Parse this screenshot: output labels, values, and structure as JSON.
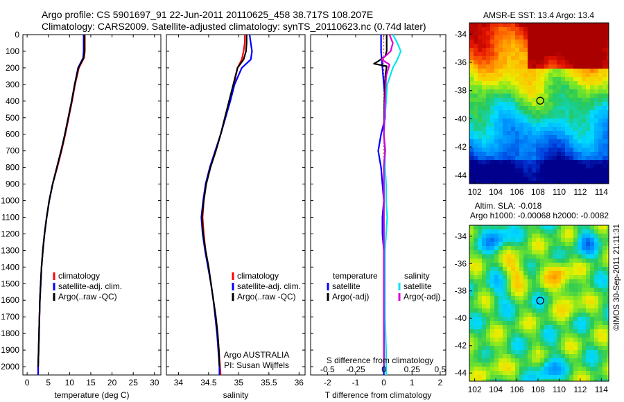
{
  "header": {
    "line1": "Argo profile: CS 5901697_91 22-Jun-2011 20110625_458 38.717S 108.207E",
    "line2": "Climatology: CARS2009. Satellite-adjusted climatology: synTS_20110623.nc (0.74d later)"
  },
  "side_label": "©IMOS 30-Sep-2011 21:11:31",
  "colors": {
    "climatology": "#ff0000",
    "satellite": "#0000ff",
    "argo": "#000000",
    "sal_satellite": "#00e5ee",
    "sal_argo": "#dd00dd",
    "zero_line": "#ff0000"
  },
  "depth_axis": {
    "ylim": [
      0,
      2050
    ],
    "ticks": [
      0,
      100,
      200,
      300,
      400,
      500,
      600,
      700,
      800,
      900,
      1000,
      1100,
      1200,
      1300,
      1400,
      1500,
      1600,
      1700,
      1800,
      1900,
      2000
    ]
  },
  "chart_data": [
    {
      "id": "temperature",
      "type": "line",
      "xlabel": "temperature (deg C)",
      "ylabel": "",
      "xlim": [
        -1,
        31.5
      ],
      "xticks": [
        0,
        5,
        10,
        15,
        20,
        25,
        30
      ],
      "ylim": [
        2050,
        0
      ],
      "series": [
        {
          "name": "climatology",
          "color_key": "climatology",
          "points": [
            [
              13.6,
              0
            ],
            [
              13.6,
              100
            ],
            [
              13.4,
              140
            ],
            [
              12.2,
              200
            ],
            [
              11.3,
              300
            ],
            [
              10.6,
              400
            ],
            [
              9.8,
              500
            ],
            [
              9.0,
              600
            ],
            [
              8.1,
              700
            ],
            [
              7.1,
              800
            ],
            [
              6.0,
              900
            ],
            [
              5.2,
              1000
            ],
            [
              4.6,
              1100
            ],
            [
              4.1,
              1200
            ],
            [
              3.7,
              1300
            ],
            [
              3.4,
              1400
            ],
            [
              3.2,
              1500
            ],
            [
              3.0,
              1600
            ],
            [
              2.9,
              1700
            ],
            [
              2.8,
              1800
            ],
            [
              2.7,
              1900
            ],
            [
              2.6,
              2000
            ],
            [
              2.6,
              2050
            ]
          ]
        },
        {
          "name": "satellite-adj. clim.",
          "color_key": "satellite",
          "points": [
            [
              13.3,
              0
            ],
            [
              13.3,
              100
            ],
            [
              13.2,
              140
            ],
            [
              12.0,
              200
            ],
            [
              11.2,
              300
            ],
            [
              10.5,
              400
            ],
            [
              9.7,
              500
            ],
            [
              8.9,
              600
            ],
            [
              8.0,
              700
            ],
            [
              7.0,
              800
            ],
            [
              6.0,
              900
            ],
            [
              5.2,
              1000
            ],
            [
              4.6,
              1100
            ],
            [
              4.1,
              1200
            ],
            [
              3.7,
              1300
            ],
            [
              3.4,
              1400
            ],
            [
              3.2,
              1500
            ],
            [
              3.0,
              1600
            ],
            [
              2.9,
              1700
            ],
            [
              2.8,
              1800
            ],
            [
              2.7,
              1900
            ],
            [
              2.6,
              2000
            ],
            [
              2.6,
              2050
            ]
          ]
        },
        {
          "name": "Argo(..raw -QC)",
          "color_key": "argo",
          "points": [
            [
              13.5,
              0
            ],
            [
              13.5,
              100
            ],
            [
              13.3,
              140
            ],
            [
              12.1,
              200
            ],
            [
              11.2,
              300
            ],
            [
              10.5,
              400
            ],
            [
              9.7,
              500
            ],
            [
              8.9,
              600
            ],
            [
              8.0,
              700
            ],
            [
              7.0,
              800
            ],
            [
              6.0,
              900
            ],
            [
              5.2,
              1000
            ],
            [
              4.6,
              1100
            ],
            [
              4.1,
              1200
            ],
            [
              3.7,
              1300
            ],
            [
              3.4,
              1400
            ],
            [
              3.2,
              1500
            ],
            [
              3.0,
              1600
            ],
            [
              2.9,
              1700
            ],
            [
              2.8,
              1800
            ],
            [
              2.7,
              1900
            ],
            [
              2.6,
              2000
            ]
          ]
        }
      ],
      "legend": [
        "climatology",
        "satellite-adj. clim.",
        "Argo(..raw -QC)"
      ],
      "legend_position": "lower-center"
    },
    {
      "id": "salinity",
      "type": "line",
      "xlabel": "salinity",
      "ylabel": "",
      "xlim": [
        33.8,
        36.1
      ],
      "xticks": [
        34,
        34.5,
        35,
        35.5,
        36
      ],
      "xticklabels": [
        "34",
        "34.5",
        "35",
        "35.5",
        "36"
      ],
      "ylim": [
        2050,
        0
      ],
      "series": [
        {
          "name": "climatology",
          "color_key": "climatology",
          "points": [
            [
              35.1,
              0
            ],
            [
              35.1,
              50
            ],
            [
              35.08,
              100
            ],
            [
              35.05,
              150
            ],
            [
              34.98,
              200
            ],
            [
              34.92,
              300
            ],
            [
              34.85,
              400
            ],
            [
              34.78,
              500
            ],
            [
              34.7,
              600
            ],
            [
              34.62,
              700
            ],
            [
              34.53,
              800
            ],
            [
              34.46,
              900
            ],
            [
              34.42,
              1000
            ],
            [
              34.4,
              1100
            ],
            [
              34.42,
              1200
            ],
            [
              34.45,
              1300
            ],
            [
              34.5,
              1400
            ],
            [
              34.54,
              1500
            ],
            [
              34.58,
              1600
            ],
            [
              34.62,
              1700
            ],
            [
              34.65,
              1800
            ],
            [
              34.67,
              1900
            ],
            [
              34.69,
              2000
            ],
            [
              34.7,
              2050
            ]
          ]
        },
        {
          "name": "satellite-adj. clim.",
          "color_key": "satellite",
          "points": [
            [
              35.18,
              0
            ],
            [
              35.2,
              50
            ],
            [
              35.22,
              100
            ],
            [
              35.2,
              150
            ],
            [
              35.05,
              200
            ],
            [
              34.93,
              300
            ],
            [
              34.86,
              400
            ],
            [
              34.78,
              500
            ],
            [
              34.7,
              600
            ],
            [
              34.61,
              700
            ],
            [
              34.52,
              800
            ],
            [
              34.45,
              900
            ],
            [
              34.41,
              1000
            ],
            [
              34.38,
              1100
            ],
            [
              34.4,
              1200
            ],
            [
              34.44,
              1300
            ],
            [
              34.49,
              1400
            ],
            [
              34.54,
              1500
            ],
            [
              34.58,
              1600
            ],
            [
              34.61,
              1700
            ],
            [
              34.64,
              1800
            ],
            [
              34.66,
              1900
            ],
            [
              34.68,
              2000
            ],
            [
              34.68,
              2050
            ]
          ]
        },
        {
          "name": "Argo(..raw -QC)",
          "color_key": "argo",
          "points": [
            [
              35.13,
              0
            ],
            [
              35.13,
              50
            ],
            [
              35.12,
              100
            ],
            [
              35.08,
              150
            ],
            [
              34.98,
              200
            ],
            [
              34.91,
              300
            ],
            [
              34.84,
              400
            ],
            [
              34.77,
              500
            ],
            [
              34.7,
              600
            ],
            [
              34.62,
              700
            ],
            [
              34.53,
              800
            ],
            [
              34.46,
              900
            ],
            [
              34.42,
              1000
            ],
            [
              34.39,
              1100
            ],
            [
              34.41,
              1200
            ],
            [
              34.45,
              1300
            ],
            [
              34.5,
              1400
            ],
            [
              34.54,
              1500
            ],
            [
              34.58,
              1600
            ],
            [
              34.62,
              1700
            ],
            [
              34.65,
              1800
            ],
            [
              34.67,
              1900
            ],
            [
              34.68,
              2000
            ]
          ]
        }
      ],
      "legend": [
        "climatology",
        "satellite-adj. clim.",
        "Argo(..raw -QC)"
      ],
      "legend_position": "lower-center",
      "annotation": [
        "Argo AUSTRALIA",
        "PI: Susan Wijffels"
      ]
    },
    {
      "id": "difference",
      "type": "line",
      "xlabel": "T difference from climatology",
      "xlabel_top": "S difference from climatology",
      "xlim": [
        -2.6,
        2.2
      ],
      "xticks": [
        -2,
        -1,
        0,
        1,
        2
      ],
      "xticklabels": [
        "-2",
        "-1",
        "0",
        "1",
        "2"
      ],
      "s_ticks": [
        -0.5,
        -0.25,
        0,
        0.25,
        0.5
      ],
      "s_ticklabels": [
        "-0.5",
        "-0.25",
        "0",
        "0.25",
        "0.5"
      ],
      "s_scale": 4,
      "ylim": [
        2050,
        0
      ],
      "series": [
        {
          "name": "temperature satellite",
          "color_key": "satellite",
          "scale": 1,
          "points": [
            [
              -0.1,
              0
            ],
            [
              -0.1,
              100
            ],
            [
              -0.05,
              200
            ],
            [
              0,
              300
            ],
            [
              0.05,
              400
            ],
            [
              0.05,
              500
            ],
            [
              -0.1,
              600
            ],
            [
              -0.2,
              700
            ],
            [
              -0.1,
              800
            ],
            [
              -0.05,
              900
            ],
            [
              0,
              1000
            ],
            [
              -0.05,
              1100
            ],
            [
              -0.05,
              1200
            ],
            [
              0,
              1300
            ],
            [
              0,
              1500
            ],
            [
              0,
              1700
            ],
            [
              0,
              1900
            ],
            [
              0,
              2050
            ]
          ]
        },
        {
          "name": "temperature Argo(-adj)",
          "color_key": "argo",
          "scale": 1,
          "points": [
            [
              0.1,
              0
            ],
            [
              0.1,
              100
            ],
            [
              0.05,
              130
            ],
            [
              -0.2,
              160
            ],
            [
              -0.35,
              175
            ],
            [
              0.1,
              190
            ],
            [
              0.05,
              250
            ],
            [
              0.02,
              400
            ],
            [
              0,
              600
            ],
            [
              0.05,
              700
            ],
            [
              0,
              800
            ],
            [
              0,
              1000
            ],
            [
              0,
              1200
            ],
            [
              0,
              1500
            ],
            [
              0,
              1800
            ],
            [
              0,
              2000
            ]
          ]
        },
        {
          "name": "salinity satellite",
          "color_key": "sal_satellite",
          "scale": 4,
          "points": [
            [
              0.08,
              0
            ],
            [
              0.12,
              50
            ],
            [
              0.15,
              100
            ],
            [
              0.12,
              150
            ],
            [
              0.08,
              200
            ],
            [
              0.03,
              300
            ],
            [
              0.02,
              400
            ],
            [
              0.01,
              500
            ],
            [
              0,
              600
            ],
            [
              0.01,
              700
            ],
            [
              0.01,
              800
            ],
            [
              0.02,
              900
            ],
            [
              0.02,
              1000
            ],
            [
              0.03,
              1100
            ],
            [
              0.02,
              1200
            ],
            [
              0.01,
              1300
            ],
            [
              0.01,
              1500
            ],
            [
              0.01,
              1700
            ],
            [
              0.02,
              1900
            ],
            [
              0.02,
              2050
            ]
          ]
        },
        {
          "name": "salinity Argo(-adj)",
          "color_key": "sal_argo",
          "scale": 4,
          "points": [
            [
              0.05,
              0
            ],
            [
              0.08,
              50
            ],
            [
              0.06,
              100
            ],
            [
              -0.02,
              150
            ],
            [
              0.05,
              180
            ],
            [
              0.02,
              250
            ],
            [
              0.01,
              400
            ],
            [
              0,
              600
            ],
            [
              0.01,
              700
            ],
            [
              0,
              800
            ],
            [
              0,
              1000
            ],
            [
              0,
              1200
            ],
            [
              0,
              1500
            ],
            [
              0,
              1800
            ],
            [
              0,
              2000
            ]
          ]
        }
      ],
      "legend_temperature": {
        "heading": "temperature",
        "items": [
          "satellite",
          "Argo(-adj)"
        ]
      },
      "legend_salinity": {
        "heading": "salinity",
        "items": [
          "satellite",
          "Argo(-adj)"
        ]
      }
    },
    {
      "id": "sst_map",
      "type": "heatmap",
      "title": "AMSR-E SST: 13.4  Argo: 13.4",
      "xlim": [
        101.5,
        114.7
      ],
      "ylim": [
        -44.6,
        -33.2
      ],
      "xticks": [
        102,
        104,
        106,
        108,
        110,
        112,
        114
      ],
      "yticks": [
        -34,
        -36,
        -38,
        -40,
        -42,
        -44
      ],
      "marker": {
        "lon": 108.207,
        "lat": -38.717
      },
      "value_range": [
        9,
        17
      ]
    },
    {
      "id": "sla_map",
      "type": "heatmap",
      "title": "Altim. SLA: -0.018",
      "subtitle": "Argo h1000: -0.00068  h2000: -0.0082",
      "xlim": [
        101.5,
        114.7
      ],
      "ylim": [
        -44.6,
        -33.2
      ],
      "xticks": [
        102,
        104,
        106,
        108,
        110,
        112,
        114
      ],
      "yticks": [
        -34,
        -36,
        -38,
        -40,
        -42,
        -44
      ],
      "marker": {
        "lon": 108.207,
        "lat": -38.717
      },
      "value_range": [
        -0.3,
        0.3
      ]
    }
  ]
}
